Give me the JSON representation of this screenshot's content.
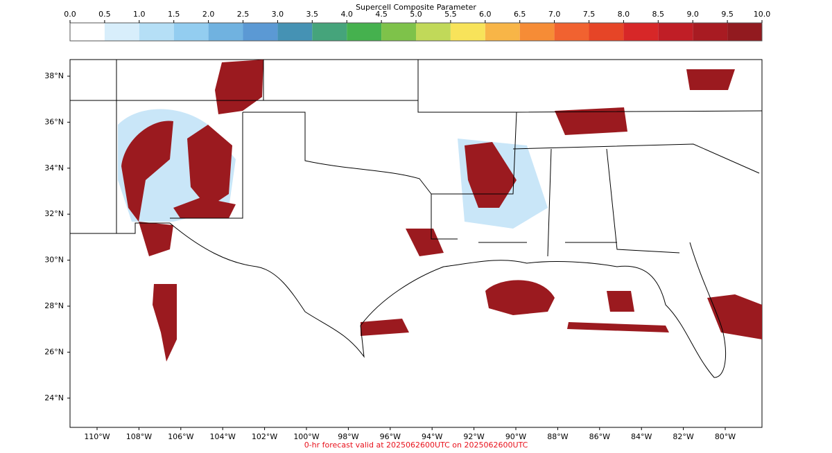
{
  "colorbar": {
    "label": "Supercell Composite Parameter",
    "ticks": [
      {
        "value": 0,
        "label": "0.0"
      },
      {
        "value": 0.5,
        "label": "0.5"
      },
      {
        "value": 1,
        "label": "1.0"
      },
      {
        "value": 1.5,
        "label": "1.5"
      },
      {
        "value": 2,
        "label": "2.0"
      },
      {
        "value": 2.5,
        "label": "2.5"
      },
      {
        "value": 3,
        "label": "3.0"
      },
      {
        "value": 3.5,
        "label": "3.5"
      },
      {
        "value": 4,
        "label": "4.0"
      },
      {
        "value": 4.5,
        "label": "4.5"
      },
      {
        "value": 5,
        "label": "5.0"
      },
      {
        "value": 5.5,
        "label": "5.5"
      },
      {
        "value": 6,
        "label": "6.0"
      },
      {
        "value": 6.5,
        "label": "6.5"
      },
      {
        "value": 7,
        "label": "7.0"
      },
      {
        "value": 7.5,
        "label": "7.5"
      },
      {
        "value": 8,
        "label": "8.0"
      },
      {
        "value": 8.5,
        "label": "8.5"
      },
      {
        "value": 9,
        "label": "9.0"
      },
      {
        "value": 9.5,
        "label": "9.5"
      },
      {
        "value": 10,
        "label": "10.0"
      }
    ],
    "colors": [
      "#ffffff",
      "#d8eefb",
      "#b5dff6",
      "#93cdf0",
      "#70b2e0",
      "#5b99d4",
      "#4592b4",
      "#45a47b",
      "#45b14e",
      "#7ec24a",
      "#c1d959",
      "#f8e35a",
      "#f8b547",
      "#f68c36",
      "#f16230",
      "#e64527",
      "#d72728",
      "#c01e26",
      "#a81b22",
      "#921a1f"
    ]
  },
  "map": {
    "lat_ticks": [
      {
        "value": 38,
        "label": "38°N"
      },
      {
        "value": 36,
        "label": "36°N"
      },
      {
        "value": 34,
        "label": "34°N"
      },
      {
        "value": 32,
        "label": "32°N"
      },
      {
        "value": 30,
        "label": "30°N"
      },
      {
        "value": 28,
        "label": "28°N"
      },
      {
        "value": 26,
        "label": "26°N"
      },
      {
        "value": 24,
        "label": "24°N"
      }
    ],
    "lon_ticks": [
      {
        "value": -110,
        "label": "110°W"
      },
      {
        "value": -108,
        "label": "108°W"
      },
      {
        "value": -106,
        "label": "106°W"
      },
      {
        "value": -104,
        "label": "104°W"
      },
      {
        "value": -102,
        "label": "102°W"
      },
      {
        "value": -100,
        "label": "100°W"
      },
      {
        "value": -98,
        "label": "98°W"
      },
      {
        "value": -96,
        "label": "96°W"
      },
      {
        "value": -94,
        "label": "94°W"
      },
      {
        "value": -92,
        "label": "92°W"
      },
      {
        "value": -90,
        "label": "90°W"
      },
      {
        "value": -88,
        "label": "88°W"
      },
      {
        "value": -86,
        "label": "86°W"
      },
      {
        "value": -84,
        "label": "84°W"
      },
      {
        "value": -82,
        "label": "82°W"
      },
      {
        "value": -80,
        "label": "80°W"
      }
    ],
    "footer": "0-hr forecast valid at 2025062600UTC on 2025062600UTC"
  }
}
